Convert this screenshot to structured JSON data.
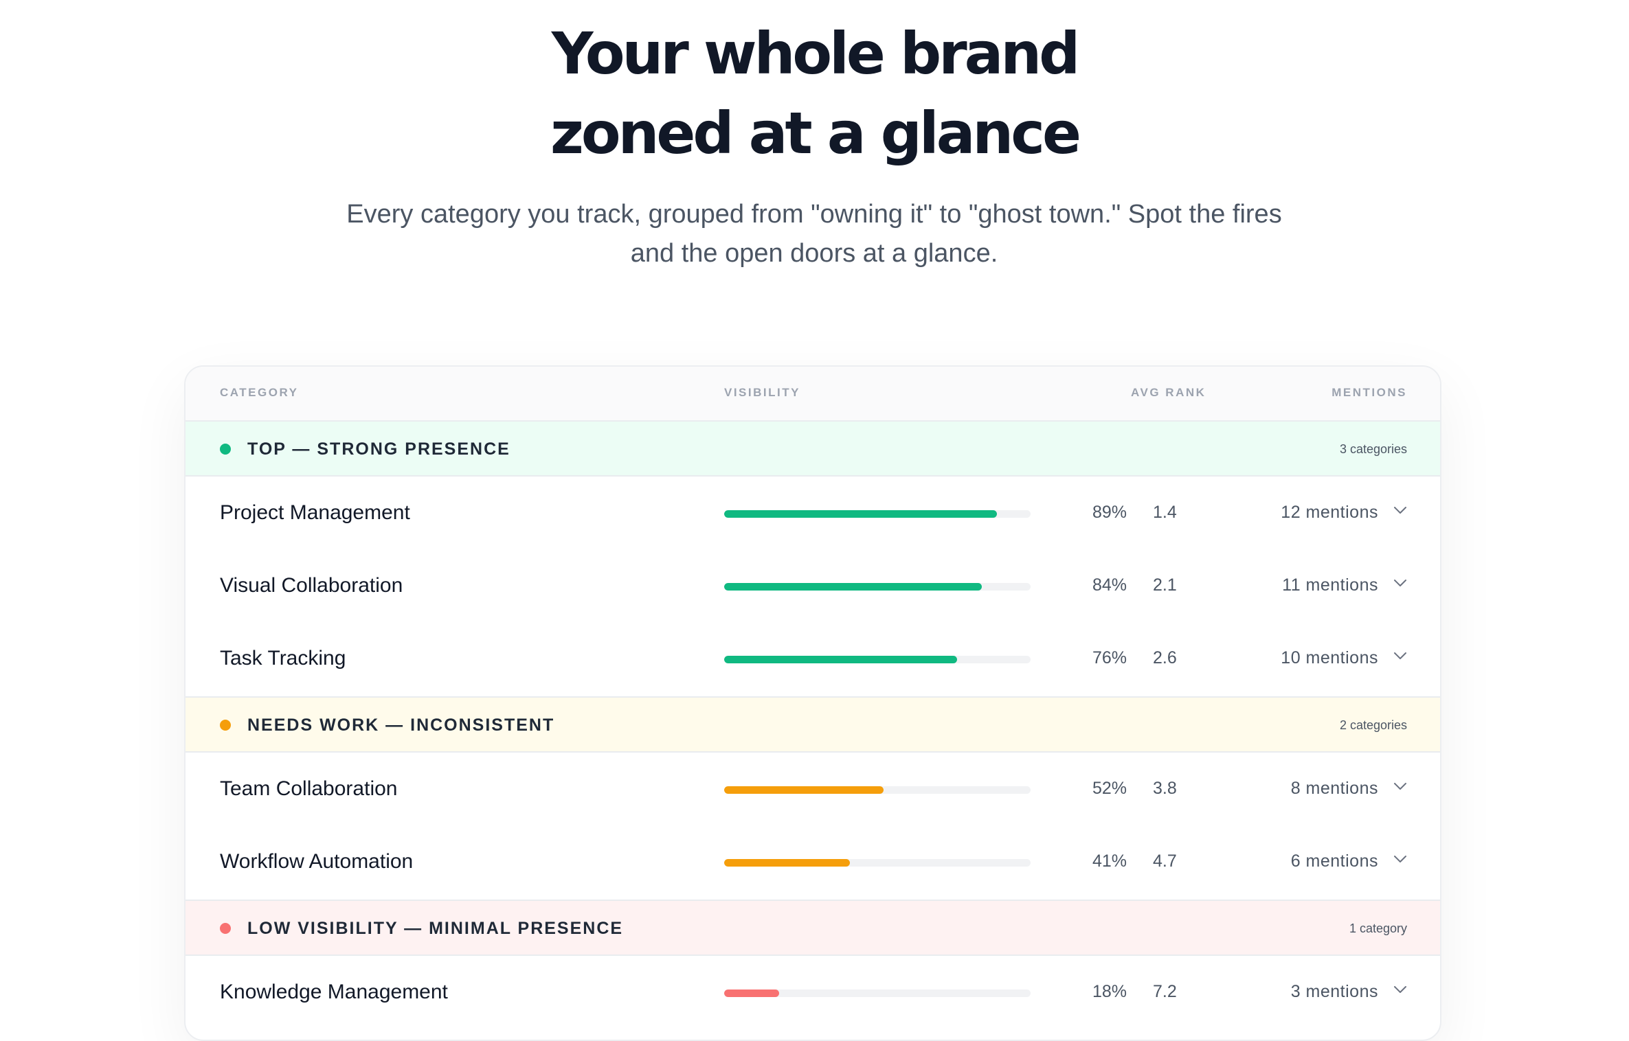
{
  "hero": {
    "title_line1": "Your whole brand",
    "title_line2": "zoned at a glance",
    "subtitle_line1": "Every category you track, grouped from \"owning it\" to \"ghost town.\" Spot the fires",
    "subtitle_line2": "and the open doors at a glance."
  },
  "table": {
    "headers": {
      "category": "CATEGORY",
      "visibility": "VISIBILITY",
      "avg_rank": "AVG RANK",
      "mentions": "MENTIONS"
    },
    "groups": [
      {
        "label": "TOP — STRONG PRESENCE",
        "count": "3 categories",
        "dot_color": "#10b981",
        "bg_color": "#ecfdf5",
        "bar_color": "#10b981",
        "rows": [
          {
            "name": "Project Management",
            "visibility_pct": 89,
            "visibility": "89%",
            "avg_rank": "1.4",
            "mentions": "12 mentions"
          },
          {
            "name": "Visual Collaboration",
            "visibility_pct": 84,
            "visibility": "84%",
            "avg_rank": "2.1",
            "mentions": "11 mentions"
          },
          {
            "name": "Task Tracking",
            "visibility_pct": 76,
            "visibility": "76%",
            "avg_rank": "2.6",
            "mentions": "10 mentions"
          }
        ]
      },
      {
        "label": "NEEDS WORK — INCONSISTENT",
        "count": "2 categories",
        "dot_color": "#f59e0b",
        "bg_color": "#fffbeb",
        "bar_color": "#f59e0b",
        "rows": [
          {
            "name": "Team Collaboration",
            "visibility_pct": 52,
            "visibility": "52%",
            "avg_rank": "3.8",
            "mentions": "8 mentions"
          },
          {
            "name": "Workflow Automation",
            "visibility_pct": 41,
            "visibility": "41%",
            "avg_rank": "4.7",
            "mentions": "6 mentions"
          }
        ]
      },
      {
        "label": "LOW VISIBILITY — MINIMAL PRESENCE",
        "count": "1 category",
        "dot_color": "#f87171",
        "bg_color": "#fef2f2",
        "bar_color": "#f87171",
        "rows": [
          {
            "name": "Knowledge Management",
            "visibility_pct": 18,
            "visibility": "18%",
            "avg_rank": "7.2",
            "mentions": "3 mentions"
          }
        ]
      }
    ],
    "expand_icon": "chevron-down-icon"
  }
}
